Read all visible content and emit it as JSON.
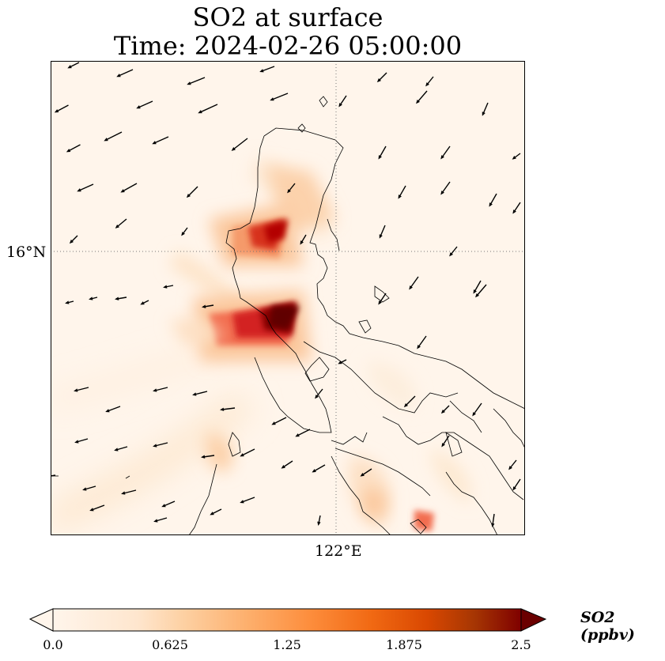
{
  "title": {
    "line1": "SO2 at surface",
    "line2": "Time: 2024-02-26 05:00:00"
  },
  "axes": {
    "lat_label": "16°N",
    "lon_label": "122°E"
  },
  "colorbar": {
    "label": "SO2 (ppbv)",
    "ticks": [
      "0.0",
      "0.625",
      "1.25",
      "1.875",
      "2.5"
    ],
    "min": 0.0,
    "max": 2.5,
    "extend": "both",
    "colors": [
      "#fff5eb",
      "#fdd49e",
      "#fdae6b",
      "#f16913",
      "#d94801",
      "#a50f15",
      "#7f0000"
    ]
  },
  "map": {
    "grid_style": "dotted",
    "coastline_color": "#000000",
    "wind_vectors": "black quiver arrows, mostly easterly/northeasterly"
  }
}
